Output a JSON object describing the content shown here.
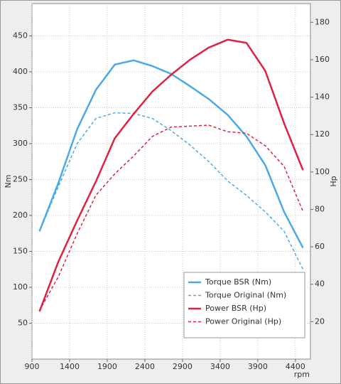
{
  "chart_data": {
    "type": "line",
    "x": [
      1000,
      1250,
      1500,
      1750,
      2000,
      2250,
      2500,
      2750,
      3000,
      3250,
      3500,
      3750,
      4000,
      4250,
      4500
    ],
    "series": [
      {
        "name": "Torque BSR (Nm)",
        "color": "#4ba9ea",
        "dashed": false,
        "axis": "y",
        "values": [
          178,
          245,
          320,
          375,
          410,
          416,
          408,
          397,
          380,
          362,
          340,
          310,
          270,
          205,
          155
        ]
      },
      {
        "name": "Torque Original (Nm)",
        "color": "#4ba9ea",
        "dashed": true,
        "axis": "y",
        "values": [
          178,
          240,
          300,
          335,
          343,
          342,
          335,
          318,
          298,
          275,
          248,
          228,
          205,
          178,
          125
        ]
      },
      {
        "name": "Power BSR (Hp)",
        "color": "#e0213f",
        "dashed": false,
        "axis": "y2",
        "values": [
          25.5,
          52,
          74,
          95,
          118,
          131,
          143,
          152,
          160,
          166.5,
          170.7,
          169,
          154,
          126,
          101
        ]
      },
      {
        "name": "Power Original (Hp)",
        "color": "#e0213f",
        "dashed": true,
        "axis": "y2",
        "values": [
          26,
          44,
          67,
          87.6,
          99,
          108.5,
          119,
          124,
          124.5,
          125,
          121.5,
          120.7,
          114,
          103,
          79
        ]
      }
    ],
    "xlabel": "rpm",
    "ylabel": "Nm",
    "y2label": "Hp",
    "xlim": [
      900,
      4600
    ],
    "xticks": [
      900,
      1400,
      1900,
      2400,
      2900,
      3400,
      3900,
      4400
    ],
    "ylim": [
      0,
      495
    ],
    "yticks": [
      50,
      100,
      150,
      200,
      250,
      300,
      350,
      400,
      450
    ],
    "y2lim": [
      0,
      190
    ],
    "y2ticks": [
      20,
      40,
      60,
      80,
      100,
      120,
      140,
      160,
      180
    ],
    "grid": true,
    "legend": "lower right"
  }
}
